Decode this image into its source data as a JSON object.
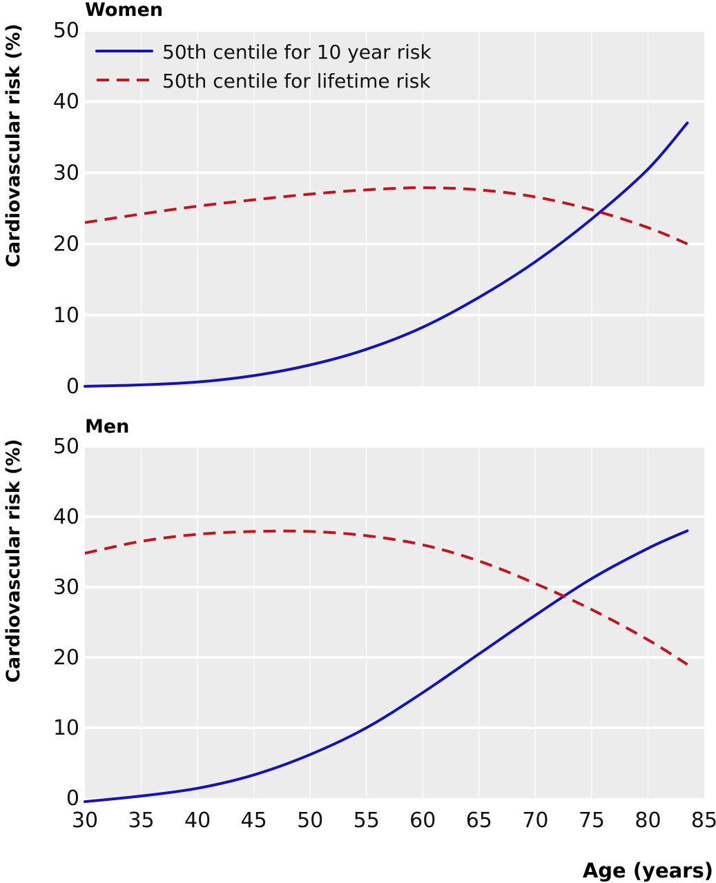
{
  "chart_data": [
    {
      "type": "line",
      "title": "Women",
      "ylabel": "Cardiovascular risk (%)",
      "xlabel": "",
      "xlim": [
        30,
        85
      ],
      "ylim": [
        0,
        50
      ],
      "yticks": [
        0,
        10,
        20,
        30,
        40,
        50
      ],
      "xticks": [],
      "grid": true,
      "legend": {
        "placement": "top-left"
      },
      "series": [
        {
          "name": "50th centile for 10 year risk",
          "style": "solid",
          "color": "#1414b4",
          "x": [
            30,
            35,
            40,
            45,
            50,
            55,
            60,
            65,
            70,
            75,
            80,
            83.5
          ],
          "y": [
            0.0,
            0.2,
            0.6,
            1.5,
            3.0,
            5.2,
            8.3,
            12.5,
            17.5,
            23.5,
            30.5,
            37.0
          ]
        },
        {
          "name": "50th centile for lifetime risk",
          "style": "dashed",
          "color": "#c0141e",
          "x": [
            30,
            35,
            40,
            45,
            50,
            55,
            60,
            65,
            70,
            75,
            80,
            83.5
          ],
          "y": [
            23.0,
            24.2,
            25.3,
            26.2,
            27.0,
            27.6,
            27.9,
            27.6,
            26.6,
            24.8,
            22.3,
            20.0
          ]
        }
      ]
    },
    {
      "type": "line",
      "title": "Men",
      "ylabel": "Cardiovascular risk (%)",
      "xlabel": "Age (years)",
      "xlim": [
        30,
        85
      ],
      "ylim": [
        0,
        50
      ],
      "yticks": [
        0,
        10,
        20,
        30,
        40,
        50
      ],
      "xticks": [
        30,
        35,
        40,
        45,
        50,
        55,
        60,
        65,
        70,
        75,
        80,
        85
      ],
      "grid": true,
      "series": [
        {
          "name": "50th centile for 10 year risk",
          "style": "solid",
          "color": "#1414b4",
          "x": [
            30,
            35,
            40,
            45,
            50,
            55,
            60,
            65,
            70,
            75,
            80,
            83.5
          ],
          "y": [
            -0.5,
            0.3,
            1.4,
            3.3,
            6.2,
            10.0,
            15.0,
            20.5,
            26.0,
            31.2,
            35.5,
            38.0
          ]
        },
        {
          "name": "50th centile for lifetime risk",
          "style": "dashed",
          "color": "#c0141e",
          "x": [
            30,
            35,
            40,
            45,
            50,
            55,
            60,
            65,
            70,
            75,
            80,
            83.5
          ],
          "y": [
            34.8,
            36.5,
            37.5,
            37.9,
            37.9,
            37.3,
            36.0,
            33.7,
            30.5,
            26.8,
            22.5,
            19.0
          ]
        }
      ]
    }
  ]
}
